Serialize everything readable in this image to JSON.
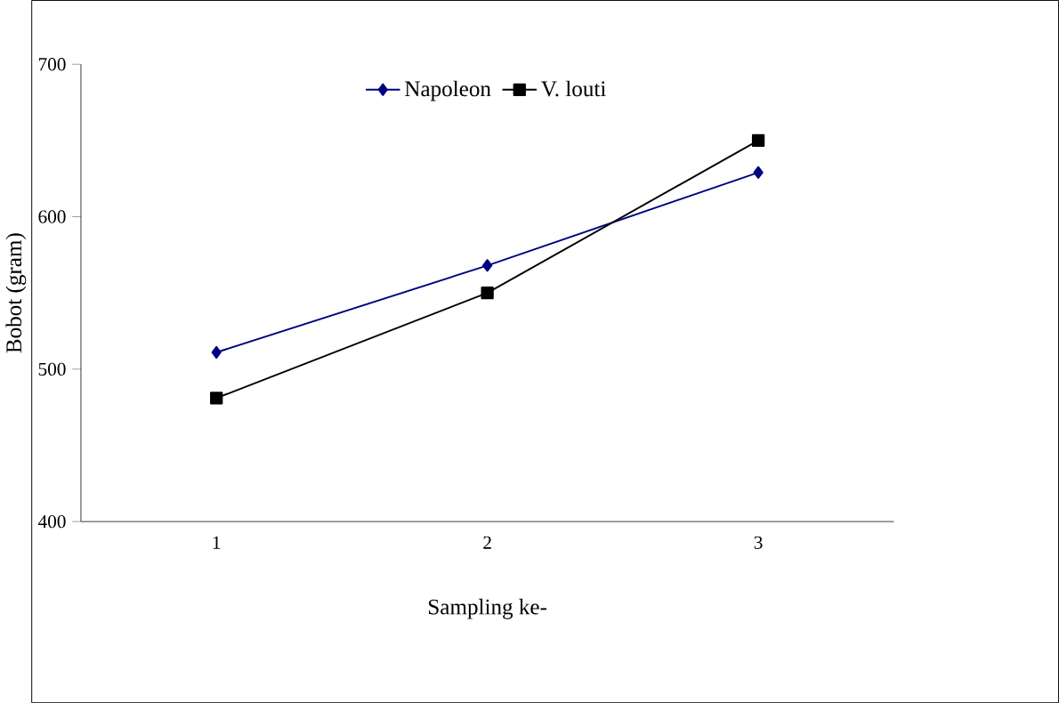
{
  "chart_data": {
    "type": "line",
    "xlabel": "Sampling ke-",
    "ylabel": "Bobot (gram)",
    "categories": [
      "1",
      "2",
      "3"
    ],
    "series": [
      {
        "name": "Napoleon",
        "color": "#000080",
        "marker": "diamond",
        "values": [
          511,
          568,
          629
        ]
      },
      {
        "name": "V. louti",
        "color": "#000000",
        "marker": "square",
        "values": [
          481,
          550,
          650
        ]
      }
    ],
    "ylim": [
      400,
      700
    ],
    "yticks": [
      400,
      500,
      600,
      700
    ],
    "grid": false,
    "legend": "top",
    "line_style": "solid"
  }
}
